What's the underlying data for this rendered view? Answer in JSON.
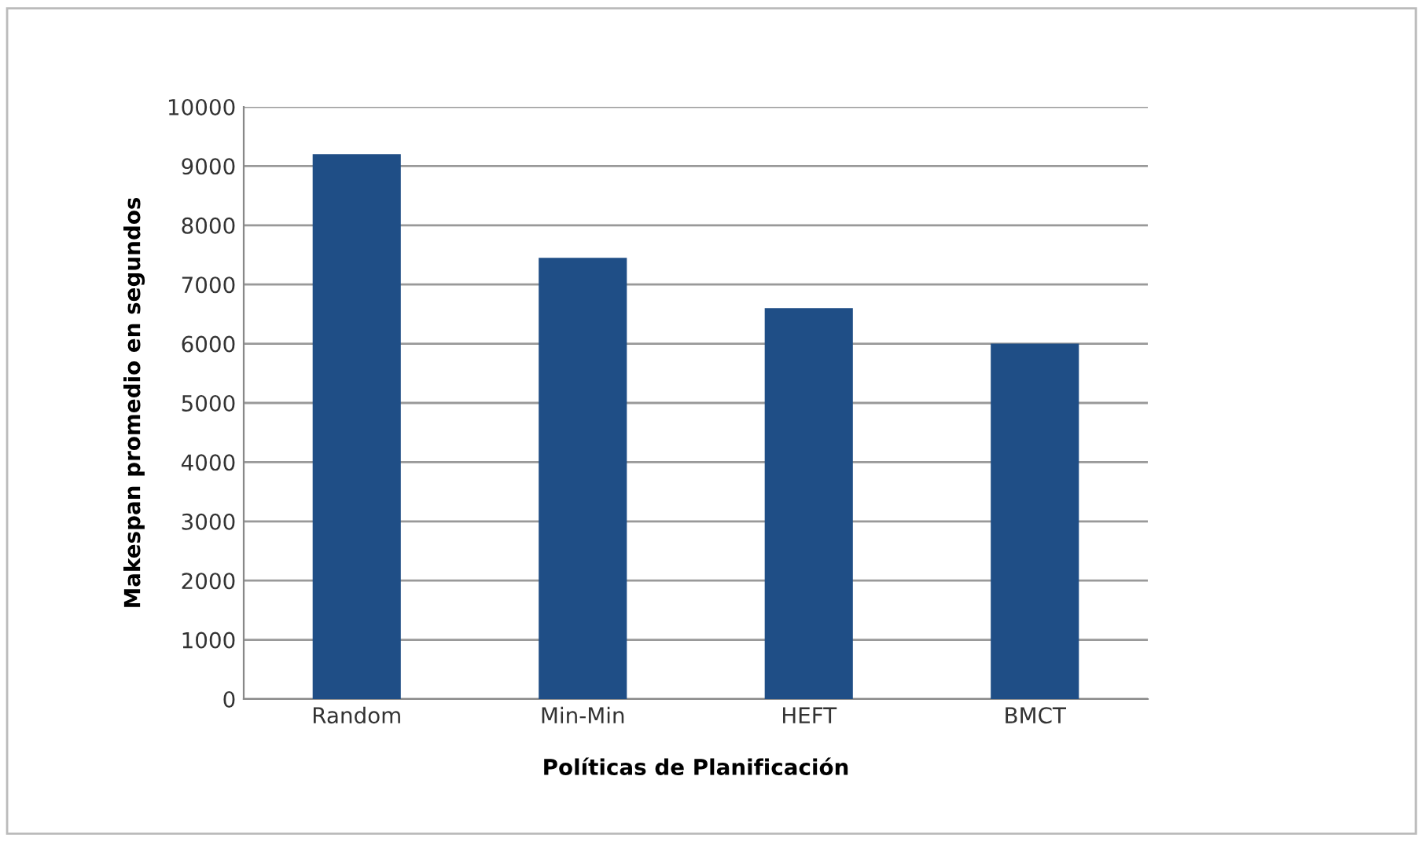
{
  "chart_data": {
    "type": "bar",
    "xlabel": "Políticas de Planificación",
    "ylabel": "Makespan promedio en segundos",
    "categories": [
      "Random",
      "Min-Min",
      "HEFT",
      "BMCT"
    ],
    "values": [
      9200,
      7450,
      6600,
      6000
    ],
    "color": "#1f4e86",
    "ylim": [
      0,
      10000
    ],
    "yticks": [
      0,
      1000,
      2000,
      3000,
      4000,
      5000,
      6000,
      7000,
      8000,
      9000,
      10000
    ],
    "grid": "y",
    "legend": false
  }
}
